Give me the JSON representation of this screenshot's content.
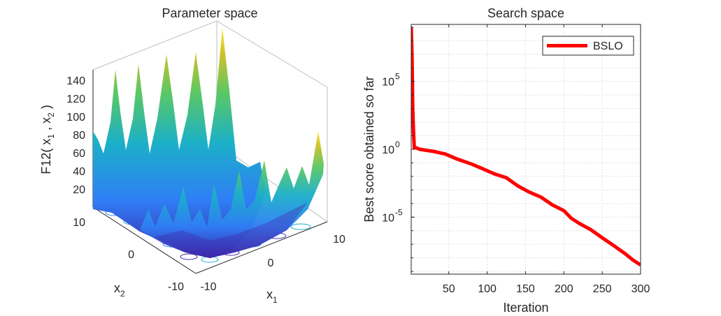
{
  "chart_data": [
    {
      "type": "surface",
      "title": "Parameter space",
      "zlabel": {
        "main": "F12( x",
        "sub1": "1",
        "mid": " , x",
        "sub2": "2",
        "end": " )"
      },
      "xlabel": {
        "main": "x",
        "sub": "1"
      },
      "ylabel": {
        "main": "x",
        "sub": "2"
      },
      "z_ticks": [
        "20",
        "40",
        "60",
        "80",
        "100",
        "120",
        "140"
      ],
      "x_ticks": [
        "-10",
        "0",
        "10"
      ],
      "y_ticks": [
        "-10",
        "0",
        "10"
      ],
      "xlim": [
        -10,
        10
      ],
      "ylim": [
        -10,
        10
      ],
      "zlim": [
        0,
        150
      ],
      "colormap": [
        "#3e26a8",
        "#2f7ef6",
        "#1bb0c8",
        "#5bc864",
        "#c9c12b",
        "#f9e325"
      ]
    },
    {
      "type": "line",
      "title": "Search space",
      "xlabel": "Iteration",
      "ylabel": "Best score obtained so far",
      "x_ticks": [
        "50",
        "100",
        "150",
        "200",
        "250",
        "300"
      ],
      "y_ticks": [
        {
          "base": "10",
          "exp": "5"
        },
        {
          "base": "10",
          "exp": "0"
        },
        {
          "base": "10",
          "exp": "-5"
        }
      ],
      "yscale": "log",
      "xlim": [
        1,
        300
      ],
      "ylim_log10": [
        -9.2,
        9.2
      ],
      "grid": true,
      "legend_position": "top-right",
      "series": [
        {
          "name": "BSLO",
          "color": "#ff0000",
          "points": [
            [
              1,
              1000000000
            ],
            [
              2,
              10000000
            ],
            [
              3,
              1000
            ],
            [
              4,
              20
            ],
            [
              5,
              1.3
            ],
            [
              8,
              1.25
            ],
            [
              12,
              1.0
            ],
            [
              20,
              0.85
            ],
            [
              30,
              0.7
            ],
            [
              45,
              0.45
            ],
            [
              60,
              0.2
            ],
            [
              80,
              0.08
            ],
            [
              95,
              0.035
            ],
            [
              110,
              0.015
            ],
            [
              125,
              0.008
            ],
            [
              140,
              0.002
            ],
            [
              155,
              0.0007
            ],
            [
              170,
              0.0003
            ],
            [
              185,
              8e-05
            ],
            [
              200,
              3e-05
            ],
            [
              210,
              8e-06
            ],
            [
              220,
              3.5e-06
            ],
            [
              235,
              1.2e-06
            ],
            [
              250,
              3e-07
            ],
            [
              265,
              8e-08
            ],
            [
              280,
              2e-08
            ],
            [
              290,
              7e-09
            ],
            [
              300,
              3e-09
            ]
          ]
        }
      ]
    }
  ]
}
